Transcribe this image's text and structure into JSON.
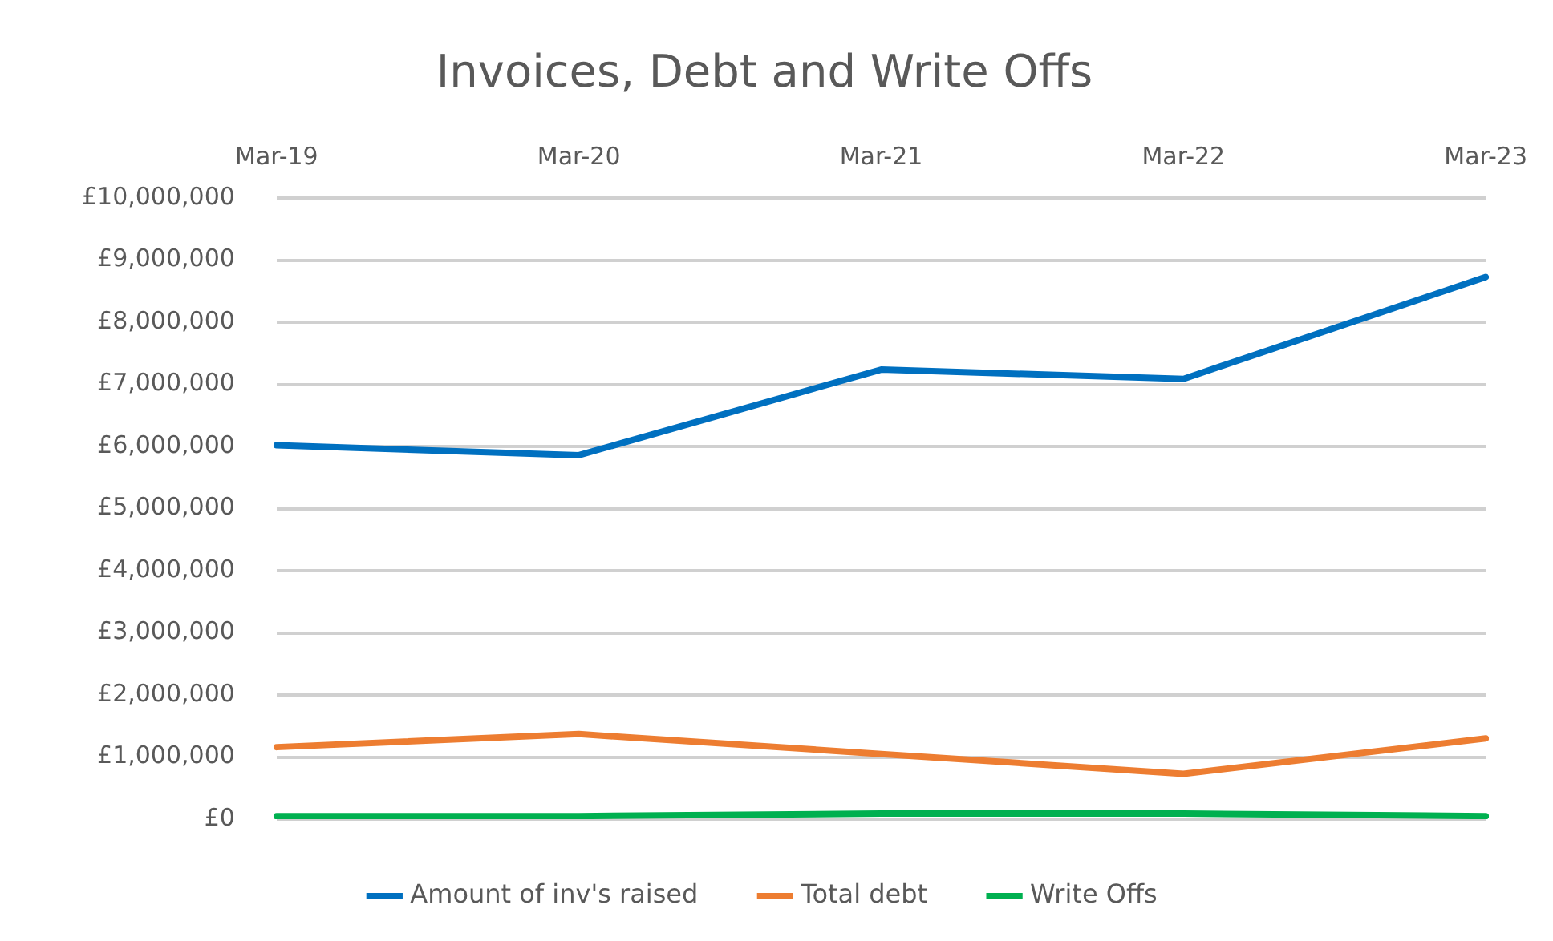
{
  "chart_data": {
    "type": "line",
    "title": "Invoices, Debt and Write Offs",
    "categories": [
      "Mar-19",
      "Mar-20",
      "Mar-21",
      "Mar-22",
      "Mar-23"
    ],
    "series": [
      {
        "name": "Amount of inv's raised",
        "color": "#0070c0",
        "values": [
          6020000,
          5860000,
          7240000,
          7090000,
          8730000
        ]
      },
      {
        "name": "Total debt",
        "color": "#ed7d31",
        "values": [
          1160000,
          1370000,
          1050000,
          730000,
          1300000
        ]
      },
      {
        "name": "Write Offs",
        "color": "#00b050",
        "values": [
          50000,
          50000,
          90000,
          90000,
          50000
        ]
      }
    ],
    "ylim": [
      0,
      10000000
    ],
    "yticks": [
      {
        "value": 0,
        "label": "£0"
      },
      {
        "value": 1000000,
        "label": "£1,000,000"
      },
      {
        "value": 2000000,
        "label": "£2,000,000"
      },
      {
        "value": 3000000,
        "label": "£3,000,000"
      },
      {
        "value": 4000000,
        "label": "£4,000,000"
      },
      {
        "value": 5000000,
        "label": "£5,000,000"
      },
      {
        "value": 6000000,
        "label": "£6,000,000"
      },
      {
        "value": 7000000,
        "label": "£7,000,000"
      },
      {
        "value": 8000000,
        "label": "£8,000,000"
      },
      {
        "value": 9000000,
        "label": "£9,000,000"
      },
      {
        "value": 10000000,
        "label": "£10,000,000"
      }
    ],
    "grid": "y",
    "legend": "bottom",
    "marker": "none",
    "line_style": "solid"
  }
}
